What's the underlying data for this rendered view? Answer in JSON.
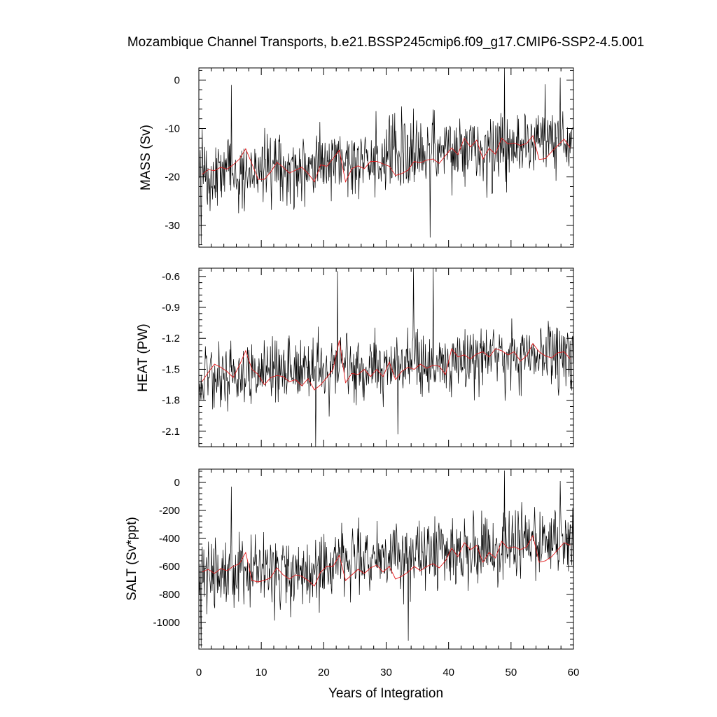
{
  "title": "Mozambique Channel Transports, b.e21.BSSP245cmip6.f09_g17.CMIP6-SSP2-4.5.001",
  "xlabel": "Years of Integration",
  "colors": {
    "monthly": "#000000",
    "annual": "#e41a1c",
    "frame": "#000000"
  },
  "chart_data": [
    {
      "type": "line",
      "ylabel": "MASS (Sv)",
      "xlim": [
        0,
        60
      ],
      "ylim": [
        -34.5,
        2.5
      ],
      "xticks": [
        0,
        10,
        20,
        30,
        40,
        50,
        60
      ],
      "yticks": [
        0,
        -10,
        -20,
        -30
      ],
      "ytick_labels": [
        "0",
        "-10",
        "-20",
        "-30"
      ],
      "series": [
        {
          "style": "monthly",
          "trend_start": -20,
          "trend_end": -12,
          "amplitude": 6.2,
          "extremes": [
            [
              0.3,
              -34.0
            ],
            [
              5.2,
              -1.0
            ],
            [
              48.9,
              2.5
            ],
            [
              57.8,
              0.5
            ],
            [
              37.0,
              -32.5
            ]
          ]
        },
        {
          "style": "annual",
          "x": [
            0.5,
            1.5,
            2.5,
            3.5,
            4.5,
            5.5,
            6.5,
            7.5,
            8.5,
            9.5,
            10.5,
            11.5,
            12.5,
            13.5,
            14.5,
            15.5,
            16.5,
            17.5,
            18.5,
            19.5,
            20.5,
            21.5,
            22.5,
            23.5,
            24.5,
            25.5,
            26.5,
            27.5,
            28.5,
            29.5,
            30.5,
            31.5,
            32.5,
            33.5,
            34.5,
            35.5,
            36.5,
            37.5,
            38.5,
            39.5,
            40.5,
            41.5,
            42.5,
            43.5,
            44.5,
            45.5,
            46.5,
            47.5,
            48.5,
            49.5,
            50.5,
            51.5,
            52.5,
            53.5,
            54.5,
            55.5,
            56.5,
            57.5,
            58.5,
            59.5
          ],
          "y": [
            -19.5,
            -18.5,
            -18.7,
            -18.0,
            -18.4,
            -17.5,
            -16.3,
            -14.2,
            -17.3,
            -20.5,
            -20.5,
            -19.0,
            -17.0,
            -18.0,
            -19.2,
            -18.6,
            -18.0,
            -19.3,
            -21.0,
            -17.5,
            -17.8,
            -16.2,
            -14.5,
            -21.0,
            -18.3,
            -17.7,
            -18.3,
            -16.8,
            -16.8,
            -17.3,
            -17.8,
            -19.7,
            -19.3,
            -18.6,
            -16.8,
            -17.1,
            -16.5,
            -16.3,
            -17.2,
            -15.6,
            -14.0,
            -15.4,
            -12.0,
            -13.8,
            -12.4,
            -16.3,
            -14.1,
            -15.3,
            -12.0,
            -13.2,
            -13.0,
            -13.5,
            -13.1,
            -11.5,
            -16.4,
            -16.2,
            -14.8,
            -13.5,
            -12.2,
            -14.0
          ]
        }
      ]
    },
    {
      "type": "line",
      "ylabel": "HEAT (PW)",
      "xlim": [
        0,
        60
      ],
      "ylim": [
        -2.25,
        -0.52
      ],
      "xticks": [
        0,
        10,
        20,
        30,
        40,
        50,
        60
      ],
      "yticks": [
        -0.6,
        -0.9,
        -1.2,
        -1.5,
        -1.8,
        -2.1
      ],
      "ytick_labels": [
        "-0.6",
        "-0.9",
        "-1.2",
        "-1.5",
        "-1.8",
        "-2.1"
      ],
      "series": [
        {
          "style": "monthly",
          "trend_start": -1.57,
          "trend_end": -1.36,
          "amplitude": 0.26,
          "extremes": [
            [
              18.7,
              -2.25
            ],
            [
              22.2,
              -0.55
            ],
            [
              34.3,
              -0.52
            ],
            [
              37.5,
              -0.52
            ],
            [
              31.8,
              -2.13
            ]
          ]
        },
        {
          "style": "annual",
          "x": [
            0.5,
            1.5,
            2.5,
            3.5,
            4.5,
            5.5,
            6.5,
            7.5,
            8.5,
            9.5,
            10.5,
            11.5,
            12.5,
            13.5,
            14.5,
            15.5,
            16.5,
            17.5,
            18.5,
            19.5,
            20.5,
            21.5,
            22.5,
            23.5,
            24.5,
            25.5,
            26.5,
            27.5,
            28.5,
            29.5,
            30.5,
            31.5,
            32.5,
            33.5,
            34.5,
            35.5,
            36.5,
            37.5,
            38.5,
            39.5,
            40.5,
            41.5,
            42.5,
            43.5,
            44.5,
            45.5,
            46.5,
            47.5,
            48.5,
            49.5,
            50.5,
            51.5,
            52.5,
            53.5,
            54.5,
            55.5,
            56.5,
            57.5,
            58.5,
            59.5
          ],
          "y": [
            -1.62,
            -1.53,
            -1.45,
            -1.48,
            -1.52,
            -1.58,
            -1.46,
            -1.32,
            -1.5,
            -1.55,
            -1.65,
            -1.58,
            -1.56,
            -1.57,
            -1.62,
            -1.6,
            -1.66,
            -1.59,
            -1.7,
            -1.65,
            -1.58,
            -1.5,
            -1.22,
            -1.63,
            -1.54,
            -1.55,
            -1.5,
            -1.57,
            -1.5,
            -1.57,
            -1.43,
            -1.6,
            -1.52,
            -1.48,
            -1.5,
            -1.45,
            -1.49,
            -1.46,
            -1.47,
            -1.55,
            -1.3,
            -1.38,
            -1.36,
            -1.4,
            -1.35,
            -1.33,
            -1.38,
            -1.3,
            -1.32,
            -1.36,
            -1.33,
            -1.42,
            -1.37,
            -1.25,
            -1.33,
            -1.37,
            -1.39,
            -1.34,
            -1.33,
            -1.4
          ]
        }
      ]
    },
    {
      "type": "line",
      "ylabel": "SALT (Sv*ppt)",
      "xlim": [
        0,
        60
      ],
      "ylim": [
        -1190,
        95
      ],
      "xticks": [
        0,
        10,
        20,
        30,
        40,
        50,
        60
      ],
      "yticks": [
        0,
        -200,
        -400,
        -600,
        -800,
        -1000
      ],
      "ytick_labels": [
        "0",
        "-200",
        "-400",
        "-600",
        "-800",
        "-1000"
      ],
      "series": [
        {
          "style": "monthly",
          "trend_start": -690,
          "trend_end": -410,
          "amplitude": 215,
          "extremes": [
            [
              0.3,
              -1180
            ],
            [
              5.2,
              -30
            ],
            [
              48.9,
              85
            ],
            [
              57.8,
              10
            ],
            [
              33.5,
              -1130
            ]
          ]
        },
        {
          "style": "annual",
          "x": [
            0.5,
            1.5,
            2.5,
            3.5,
            4.5,
            5.5,
            6.5,
            7.5,
            8.5,
            9.5,
            10.5,
            11.5,
            12.5,
            13.5,
            14.5,
            15.5,
            16.5,
            17.5,
            18.5,
            19.5,
            20.5,
            21.5,
            22.5,
            23.5,
            24.5,
            25.5,
            26.5,
            27.5,
            28.5,
            29.5,
            30.5,
            31.5,
            32.5,
            33.5,
            34.5,
            35.5,
            36.5,
            37.5,
            38.5,
            39.5,
            40.5,
            41.5,
            42.5,
            43.5,
            44.5,
            45.5,
            46.5,
            47.5,
            48.5,
            49.5,
            50.5,
            51.5,
            52.5,
            53.5,
            54.5,
            55.5,
            56.5,
            57.5,
            58.5,
            59.5
          ],
          "y": [
            -640,
            -620,
            -650,
            -615,
            -630,
            -600,
            -580,
            -500,
            -700,
            -710,
            -700,
            -680,
            -610,
            -660,
            -690,
            -660,
            -670,
            -700,
            -740,
            -640,
            -600,
            -600,
            -520,
            -700,
            -660,
            -620,
            -650,
            -610,
            -590,
            -640,
            -600,
            -690,
            -670,
            -640,
            -600,
            -630,
            -600,
            -580,
            -610,
            -560,
            -470,
            -530,
            -430,
            -480,
            -450,
            -570,
            -500,
            -540,
            -420,
            -470,
            -460,
            -480,
            -460,
            -380,
            -570,
            -560,
            -530,
            -480,
            -430,
            -450
          ]
        }
      ]
    }
  ]
}
